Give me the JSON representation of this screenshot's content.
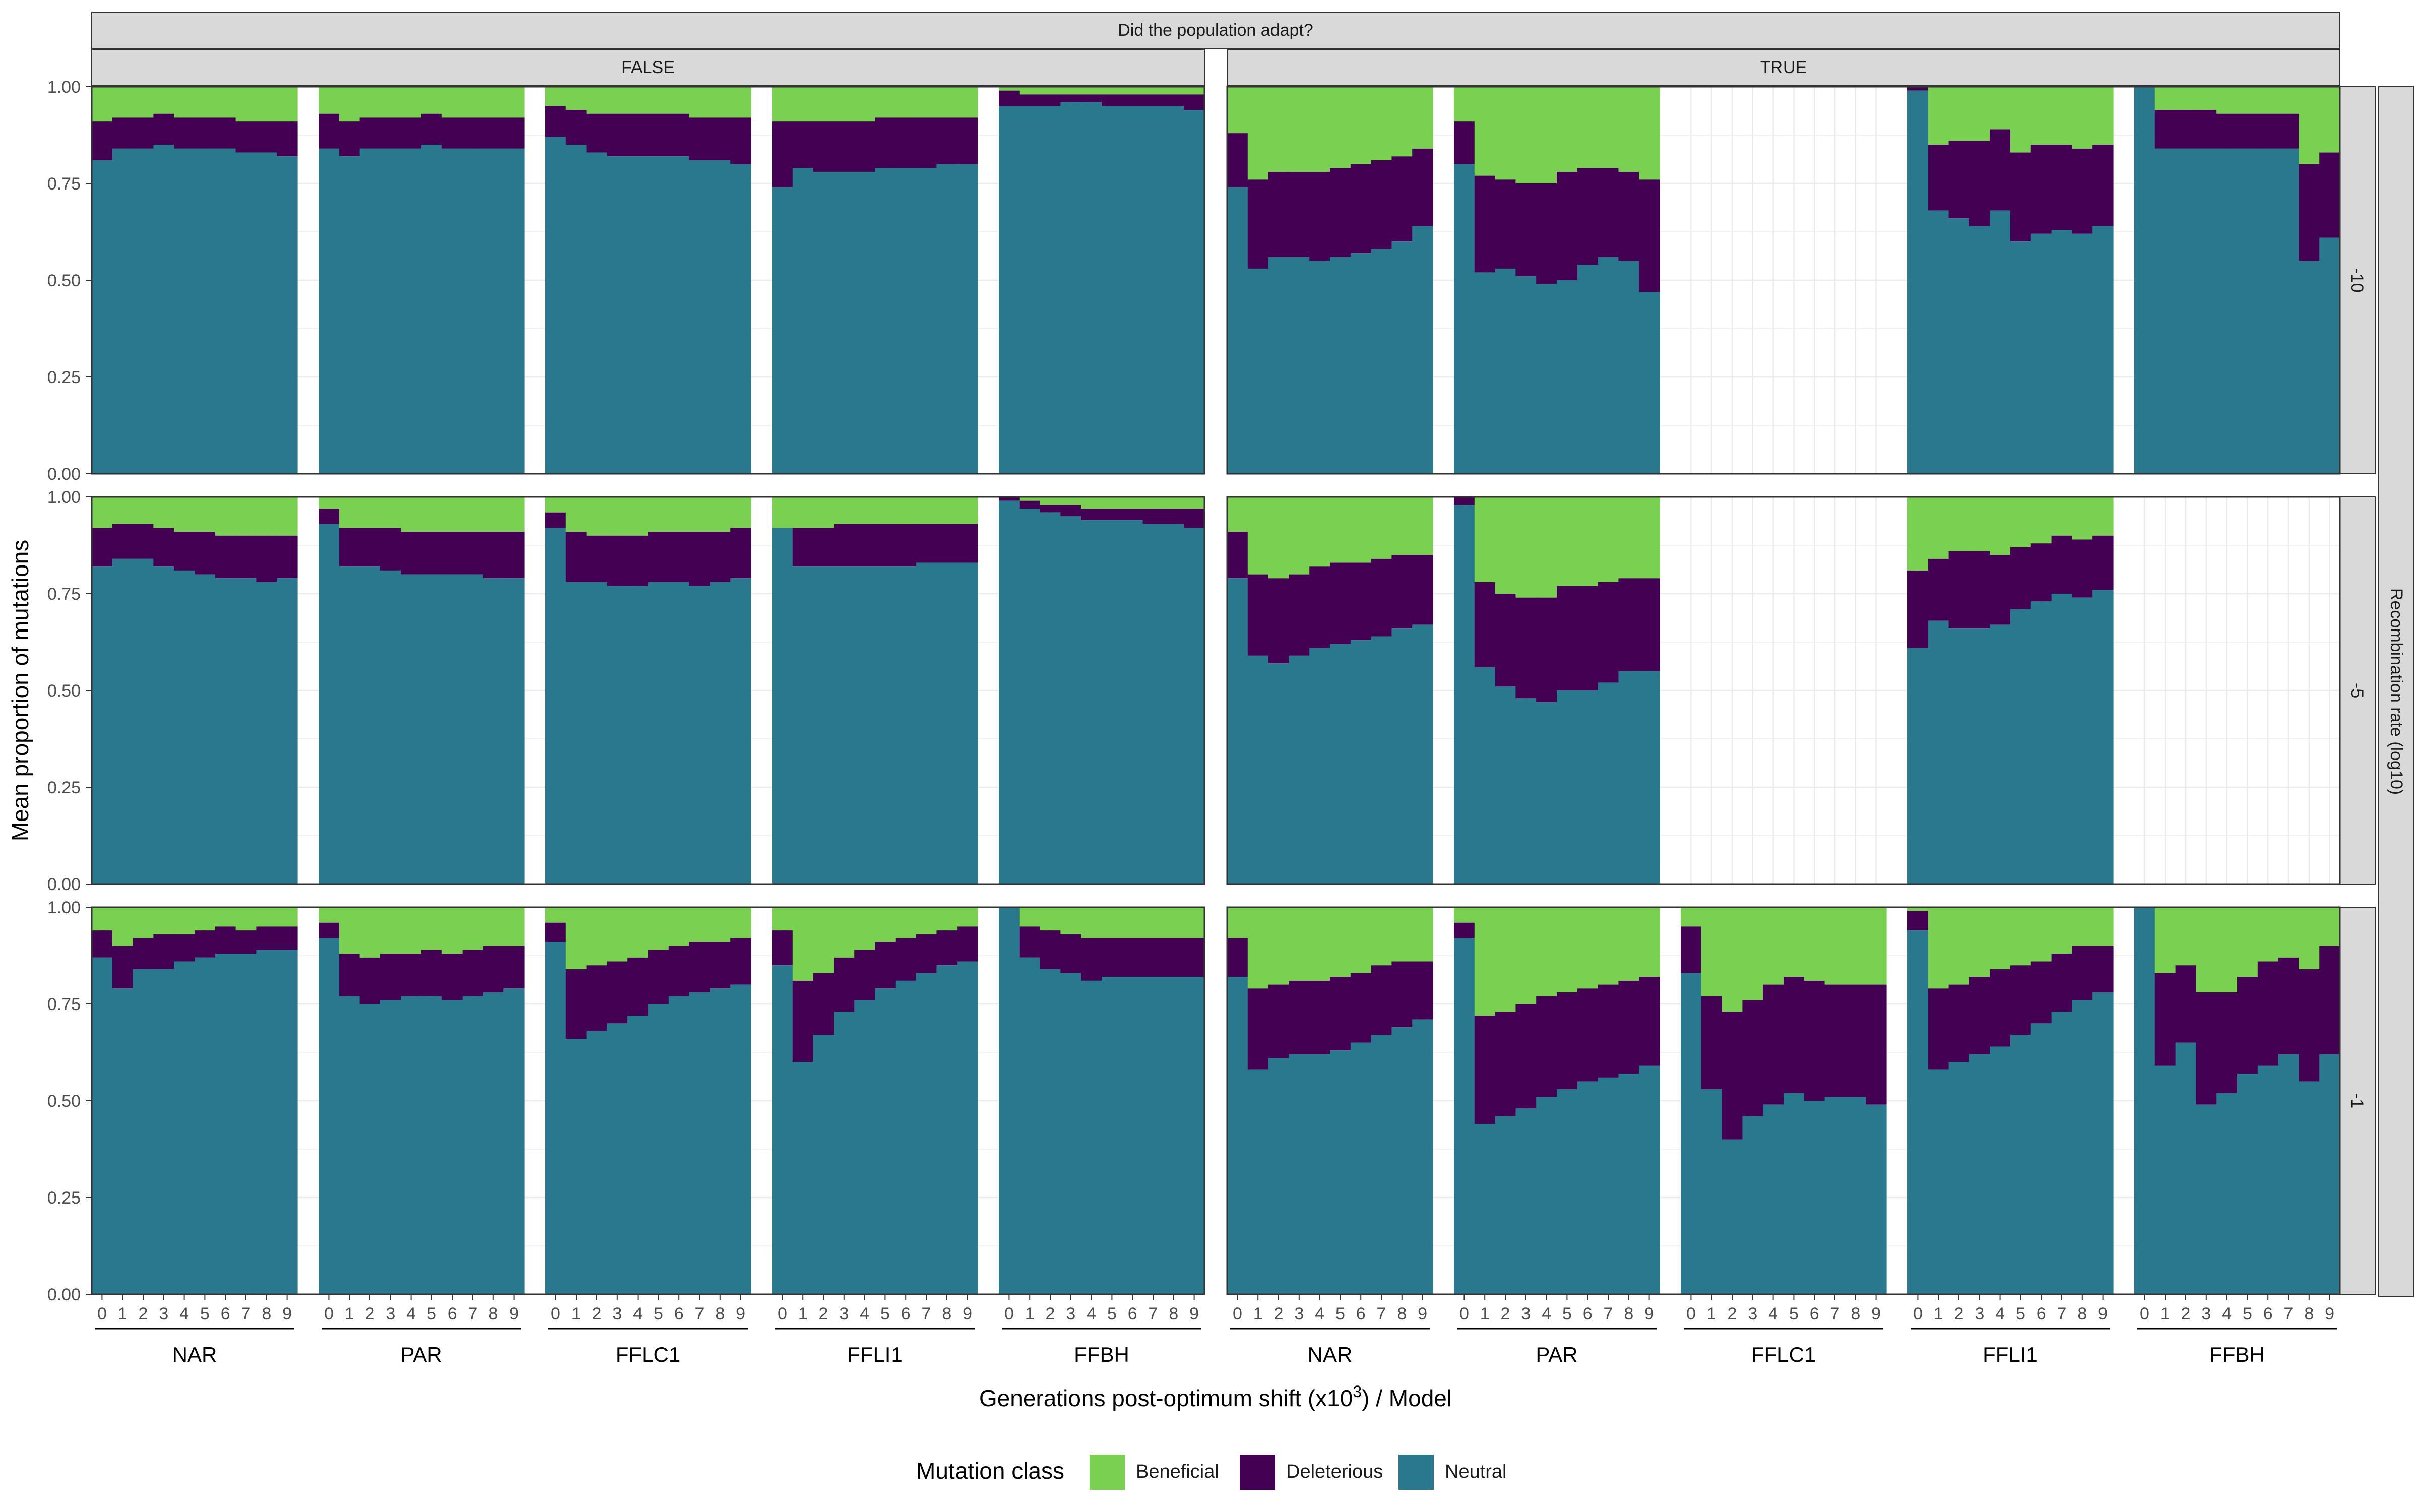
{
  "colors": {
    "Beneficial": "#7AD151",
    "Deleterious": "#440154",
    "Neutral": "#2A788E",
    "strip": "#D9D9D9",
    "grid": "#EBEBEB",
    "panel_border": "#333333"
  },
  "chart_data": {
    "type": "bar",
    "stacked": true,
    "top_strip_title": "Did the population adapt?",
    "column_facets": [
      "FALSE",
      "TRUE"
    ],
    "row_facets": [
      "-10",
      "-5",
      "-1"
    ],
    "row_strip_title": "Recombination rate (log10)",
    "models": [
      "NAR",
      "PAR",
      "FFLC1",
      "FFLI1",
      "FFBH"
    ],
    "x_ticks": [
      "0",
      "1",
      "2",
      "3",
      "4",
      "5",
      "6",
      "7",
      "8",
      "9"
    ],
    "y_ticks": [
      "0.00",
      "0.25",
      "0.50",
      "0.75",
      "1.00"
    ],
    "ylim": [
      0,
      1
    ],
    "ylabel": "Mean proportion of mutations",
    "xlabel_pre": "Generations post-optimum shift (x10",
    "xlabel_sup": "3",
    "xlabel_post": ") / Model",
    "legend_title": "Mutation class",
    "legend": [
      "Beneficial",
      "Deleterious",
      "Neutral"
    ],
    "legend_position": "bottom",
    "grid": true,
    "panels": {
      "-10": {
        "FALSE": {
          "NAR": {
            "neutral": [
              0.81,
              0.84,
              0.84,
              0.85,
              0.84,
              0.84,
              0.84,
              0.83,
              0.83,
              0.82
            ],
            "deleterious_top": [
              0.91,
              0.92,
              0.92,
              0.93,
              0.92,
              0.92,
              0.92,
              0.91,
              0.91,
              0.91
            ]
          },
          "PAR": {
            "neutral": [
              0.84,
              0.82,
              0.84,
              0.84,
              0.84,
              0.85,
              0.84,
              0.84,
              0.84,
              0.84
            ],
            "deleterious_top": [
              0.93,
              0.91,
              0.92,
              0.92,
              0.92,
              0.93,
              0.92,
              0.92,
              0.92,
              0.92
            ]
          },
          "FFLC1": {
            "neutral": [
              0.87,
              0.85,
              0.83,
              0.82,
              0.82,
              0.82,
              0.82,
              0.81,
              0.81,
              0.8
            ],
            "deleterious_top": [
              0.95,
              0.94,
              0.93,
              0.93,
              0.93,
              0.93,
              0.93,
              0.92,
              0.92,
              0.92
            ]
          },
          "FFLI1": {
            "neutral": [
              0.74,
              0.79,
              0.78,
              0.78,
              0.78,
              0.79,
              0.79,
              0.79,
              0.8,
              0.8
            ],
            "deleterious_top": [
              0.91,
              0.91,
              0.91,
              0.91,
              0.91,
              0.92,
              0.92,
              0.92,
              0.92,
              0.92
            ]
          },
          "FFBH": {
            "neutral": [
              0.95,
              0.95,
              0.95,
              0.96,
              0.96,
              0.95,
              0.95,
              0.95,
              0.95,
              0.94
            ],
            "deleterious_top": [
              0.99,
              0.98,
              0.98,
              0.98,
              0.98,
              0.98,
              0.98,
              0.98,
              0.98,
              0.98
            ]
          }
        },
        "TRUE": {
          "NAR": {
            "neutral": [
              0.74,
              0.53,
              0.56,
              0.56,
              0.55,
              0.56,
              0.57,
              0.58,
              0.6,
              0.64
            ],
            "deleterious_top": [
              0.88,
              0.76,
              0.78,
              0.78,
              0.78,
              0.79,
              0.8,
              0.81,
              0.82,
              0.84
            ]
          },
          "PAR": {
            "neutral": [
              0.8,
              0.52,
              0.53,
              0.51,
              0.49,
              0.5,
              0.54,
              0.56,
              0.55,
              0.47
            ],
            "deleterious_top": [
              0.91,
              0.77,
              0.76,
              0.75,
              0.75,
              0.78,
              0.79,
              0.79,
              0.78,
              0.76
            ]
          },
          "FFLC1": null,
          "FFLI1": {
            "neutral": [
              0.99,
              0.68,
              0.66,
              0.64,
              0.68,
              0.6,
              0.62,
              0.63,
              0.62,
              0.64
            ],
            "deleterious_top": [
              1.0,
              0.85,
              0.86,
              0.86,
              0.89,
              0.83,
              0.85,
              0.85,
              0.84,
              0.85
            ]
          },
          "FFBH": {
            "neutral": [
              1.0,
              0.84,
              0.84,
              0.84,
              0.84,
              0.84,
              0.84,
              0.84,
              0.55,
              0.61
            ],
            "deleterious_top": [
              1.0,
              0.94,
              0.94,
              0.94,
              0.93,
              0.93,
              0.93,
              0.93,
              0.8,
              0.83
            ]
          }
        }
      },
      "-5": {
        "FALSE": {
          "NAR": {
            "neutral": [
              0.82,
              0.84,
              0.84,
              0.82,
              0.81,
              0.8,
              0.79,
              0.79,
              0.78,
              0.79
            ],
            "deleterious_top": [
              0.92,
              0.93,
              0.93,
              0.92,
              0.91,
              0.91,
              0.9,
              0.9,
              0.9,
              0.9
            ]
          },
          "PAR": {
            "neutral": [
              0.93,
              0.82,
              0.82,
              0.81,
              0.8,
              0.8,
              0.8,
              0.8,
              0.79,
              0.79
            ],
            "deleterious_top": [
              0.97,
              0.92,
              0.92,
              0.92,
              0.91,
              0.91,
              0.91,
              0.91,
              0.91,
              0.91
            ]
          },
          "FFLC1": {
            "neutral": [
              0.92,
              0.78,
              0.78,
              0.77,
              0.77,
              0.78,
              0.78,
              0.77,
              0.78,
              0.79
            ],
            "deleterious_top": [
              0.96,
              0.91,
              0.9,
              0.9,
              0.9,
              0.91,
              0.91,
              0.91,
              0.91,
              0.92
            ]
          },
          "FFLI1": {
            "neutral": [
              0.92,
              0.82,
              0.82,
              0.82,
              0.82,
              0.82,
              0.82,
              0.83,
              0.83,
              0.83
            ],
            "deleterious_top": [
              0.92,
              0.92,
              0.92,
              0.93,
              0.93,
              0.93,
              0.93,
              0.93,
              0.93,
              0.93
            ]
          },
          "FFBH": {
            "neutral": [
              0.99,
              0.97,
              0.96,
              0.95,
              0.94,
              0.94,
              0.94,
              0.93,
              0.93,
              0.92
            ],
            "deleterious_top": [
              1.0,
              0.99,
              0.98,
              0.98,
              0.97,
              0.97,
              0.97,
              0.97,
              0.97,
              0.97
            ]
          }
        },
        "TRUE": {
          "NAR": {
            "neutral": [
              0.79,
              0.59,
              0.57,
              0.59,
              0.61,
              0.62,
              0.63,
              0.64,
              0.66,
              0.67
            ],
            "deleterious_top": [
              0.91,
              0.8,
              0.79,
              0.8,
              0.82,
              0.83,
              0.83,
              0.84,
              0.85,
              0.85
            ]
          },
          "PAR": {
            "neutral": [
              0.98,
              0.56,
              0.51,
              0.48,
              0.47,
              0.5,
              0.5,
              0.52,
              0.55,
              0.55
            ],
            "deleterious_top": [
              1.0,
              0.78,
              0.75,
              0.74,
              0.74,
              0.77,
              0.77,
              0.78,
              0.79,
              0.79
            ]
          },
          "FFLC1": null,
          "FFLI1": {
            "neutral": [
              0.61,
              0.68,
              0.66,
              0.66,
              0.67,
              0.71,
              0.73,
              0.75,
              0.74,
              0.76
            ],
            "deleterious_top": [
              0.81,
              0.84,
              0.86,
              0.86,
              0.85,
              0.87,
              0.88,
              0.9,
              0.89,
              0.9
            ]
          },
          "FFBH": null
        }
      },
      "-1": {
        "FALSE": {
          "NAR": {
            "neutral": [
              0.87,
              0.79,
              0.84,
              0.84,
              0.86,
              0.87,
              0.88,
              0.88,
              0.89,
              0.89
            ],
            "deleterious_top": [
              0.94,
              0.9,
              0.92,
              0.93,
              0.93,
              0.94,
              0.95,
              0.94,
              0.95,
              0.95
            ]
          },
          "PAR": {
            "neutral": [
              0.92,
              0.77,
              0.75,
              0.76,
              0.77,
              0.77,
              0.76,
              0.77,
              0.78,
              0.79
            ],
            "deleterious_top": [
              0.96,
              0.88,
              0.87,
              0.88,
              0.88,
              0.89,
              0.88,
              0.89,
              0.9,
              0.9
            ]
          },
          "FFLC1": {
            "neutral": [
              0.91,
              0.66,
              0.68,
              0.7,
              0.72,
              0.75,
              0.77,
              0.78,
              0.79,
              0.8
            ],
            "deleterious_top": [
              0.96,
              0.84,
              0.85,
              0.86,
              0.87,
              0.89,
              0.9,
              0.91,
              0.91,
              0.92
            ]
          },
          "FFLI1": {
            "neutral": [
              0.85,
              0.6,
              0.67,
              0.73,
              0.76,
              0.79,
              0.81,
              0.83,
              0.85,
              0.86
            ],
            "deleterious_top": [
              0.94,
              0.81,
              0.83,
              0.87,
              0.89,
              0.91,
              0.92,
              0.93,
              0.94,
              0.95
            ]
          },
          "FFBH": {
            "neutral": [
              1.0,
              0.87,
              0.84,
              0.83,
              0.81,
              0.82,
              0.82,
              0.82,
              0.82,
              0.82
            ],
            "deleterious_top": [
              1.0,
              0.95,
              0.94,
              0.93,
              0.92,
              0.92,
              0.92,
              0.92,
              0.92,
              0.92
            ]
          }
        },
        "TRUE": {
          "NAR": {
            "neutral": [
              0.82,
              0.58,
              0.61,
              0.62,
              0.62,
              0.63,
              0.65,
              0.67,
              0.69,
              0.71
            ],
            "deleterious_top": [
              0.92,
              0.79,
              0.8,
              0.81,
              0.81,
              0.82,
              0.83,
              0.85,
              0.86,
              0.86
            ]
          },
          "PAR": {
            "neutral": [
              0.92,
              0.44,
              0.46,
              0.48,
              0.51,
              0.53,
              0.55,
              0.56,
              0.57,
              0.59
            ],
            "deleterious_top": [
              0.96,
              0.72,
              0.73,
              0.75,
              0.77,
              0.78,
              0.79,
              0.8,
              0.81,
              0.82
            ]
          },
          "FFLC1": {
            "neutral": [
              0.83,
              0.53,
              0.4,
              0.46,
              0.49,
              0.52,
              0.5,
              0.51,
              0.51,
              0.49
            ],
            "deleterious_top": [
              0.95,
              0.77,
              0.73,
              0.76,
              0.8,
              0.82,
              0.81,
              0.8,
              0.8,
              0.8
            ]
          },
          "FFLI1": {
            "neutral": [
              0.94,
              0.58,
              0.6,
              0.62,
              0.64,
              0.67,
              0.7,
              0.73,
              0.76,
              0.78
            ],
            "deleterious_top": [
              0.99,
              0.79,
              0.8,
              0.82,
              0.84,
              0.85,
              0.86,
              0.88,
              0.9,
              0.9
            ]
          },
          "FFBH": {
            "neutral": [
              1.0,
              0.59,
              0.65,
              0.49,
              0.52,
              0.57,
              0.59,
              0.62,
              0.55,
              0.62
            ],
            "deleterious_top": [
              1.0,
              0.83,
              0.85,
              0.78,
              0.78,
              0.82,
              0.86,
              0.87,
              0.84,
              0.9
            ]
          }
        }
      }
    }
  }
}
